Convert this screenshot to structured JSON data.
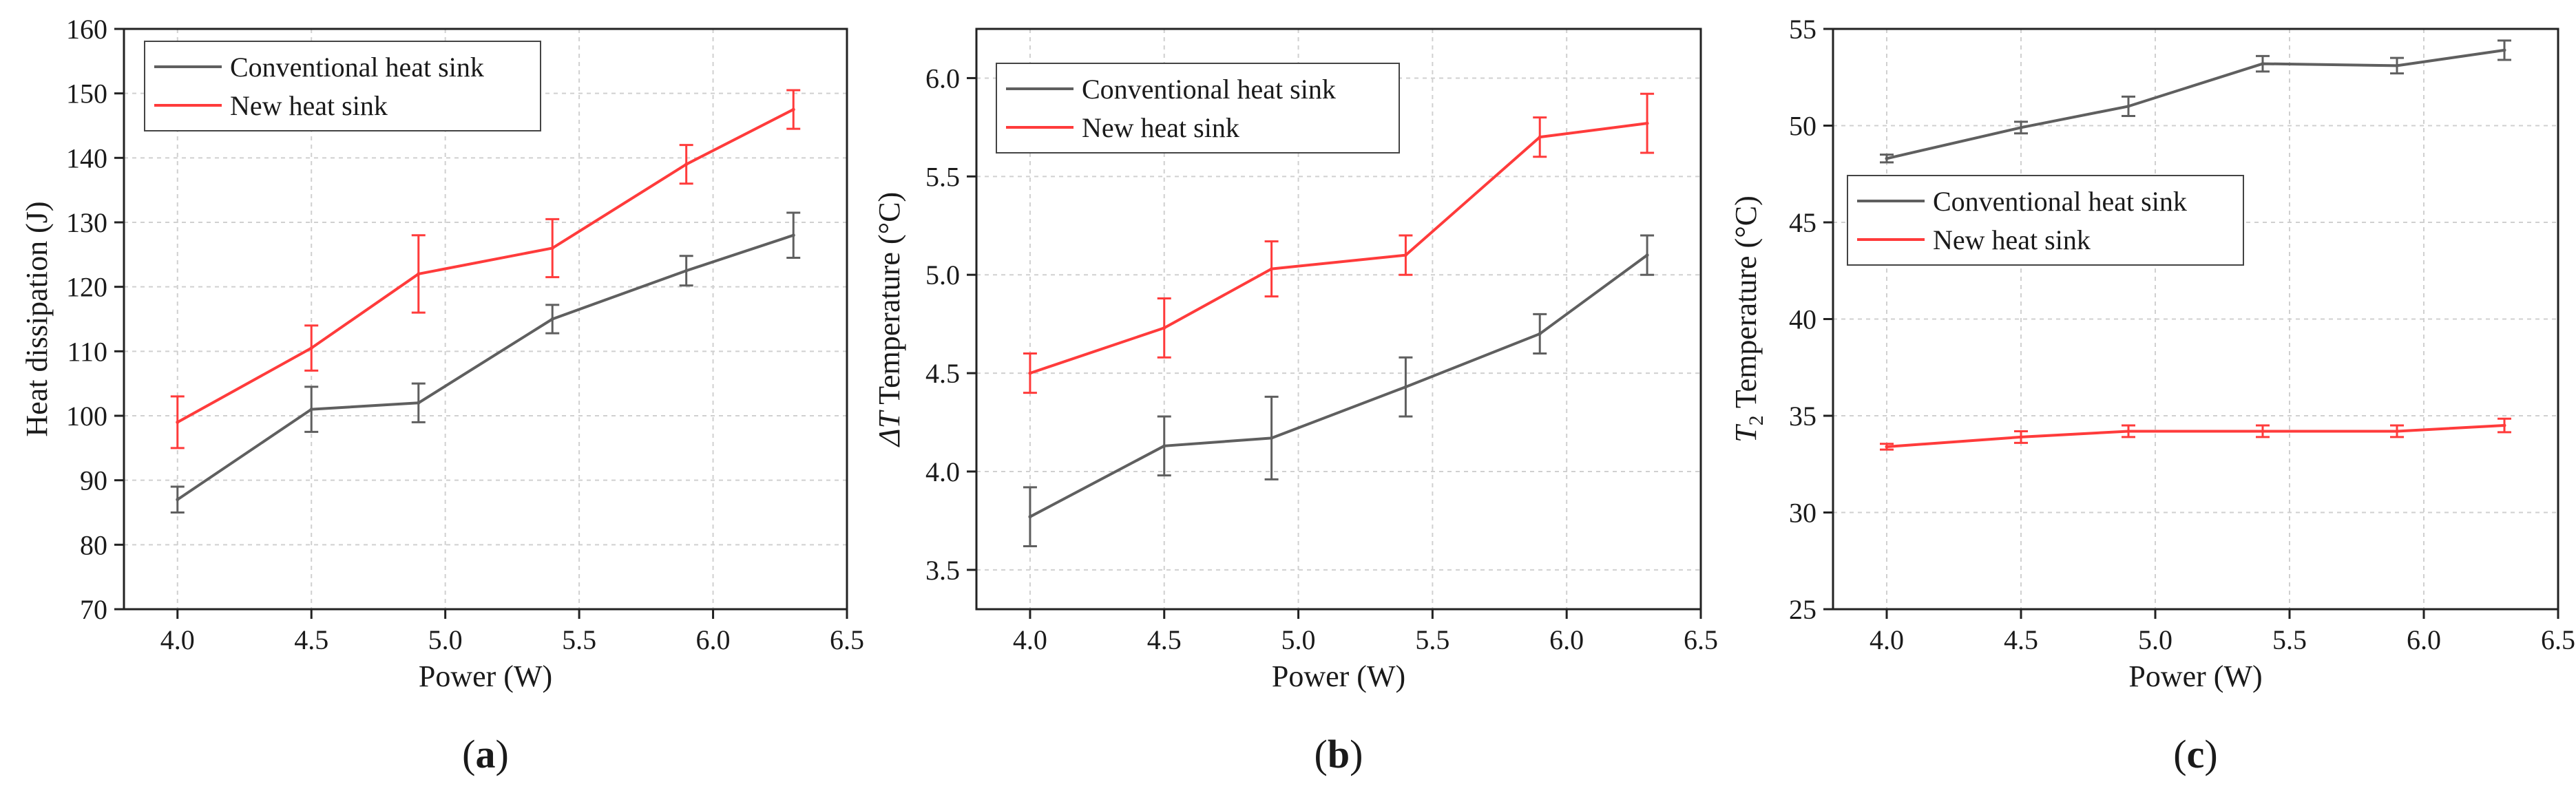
{
  "figure": {
    "colors": {
      "conventional": "#5f5f5f",
      "new": "#ff3b3b",
      "axis": "#222222",
      "grid": "#d0d0d0"
    }
  },
  "chart_data": [
    {
      "id": "a",
      "type": "line",
      "panel_label": "a",
      "xlabel": "Power (W)",
      "ylabel": "Heat dissipation (J)",
      "xlim": [
        3.8,
        6.5
      ],
      "ylim": [
        70,
        160
      ],
      "xticks": [
        "4.0",
        "4.5",
        "5.0",
        "5.5",
        "6.0",
        "6.5"
      ],
      "yticks": [
        "70",
        "80",
        "90",
        "100",
        "110",
        "120",
        "130",
        "140",
        "150",
        "160"
      ],
      "legend": "top-left",
      "x": [
        4.0,
        4.5,
        4.9,
        5.4,
        5.9,
        6.3
      ],
      "series": [
        {
          "name": "Conventional heat sink",
          "color": "#5f5f5f",
          "values": [
            87.0,
            101.0,
            102.0,
            115.0,
            122.5,
            128.0
          ],
          "errors": [
            2.0,
            3.5,
            3.0,
            2.2,
            2.3,
            3.5
          ]
        },
        {
          "name": "New heat sink",
          "color": "#ff3b3b",
          "values": [
            99.0,
            110.5,
            122.0,
            126.0,
            139.0,
            147.5
          ],
          "errors": [
            4.0,
            3.5,
            6.0,
            4.5,
            3.0,
            3.0
          ]
        }
      ]
    },
    {
      "id": "b",
      "type": "line",
      "panel_label": "b",
      "xlabel": "Power (W)",
      "ylabel_italic": "ΔT",
      "ylabel": " Temperature (°C)",
      "xlim": [
        3.8,
        6.5
      ],
      "ylim": [
        3.3,
        6.25
      ],
      "xticks": [
        "4.0",
        "4.5",
        "5.0",
        "5.5",
        "6.0",
        "6.5"
      ],
      "yticks": [
        "3.5",
        "4.0",
        "4.5",
        "5.0",
        "5.5",
        "6.0"
      ],
      "legend": "top-left",
      "x": [
        4.0,
        4.5,
        4.9,
        5.4,
        5.9,
        6.3
      ],
      "series": [
        {
          "name": "Conventional heat sink",
          "color": "#5f5f5f",
          "values": [
            3.77,
            4.13,
            4.17,
            4.43,
            4.7,
            5.1
          ],
          "errors": [
            0.15,
            0.15,
            0.21,
            0.15,
            0.1,
            0.1
          ]
        },
        {
          "name": "New heat sink",
          "color": "#ff3b3b",
          "values": [
            4.5,
            4.73,
            5.03,
            5.1,
            5.7,
            5.77
          ],
          "errors": [
            0.1,
            0.15,
            0.14,
            0.1,
            0.1,
            0.15
          ]
        }
      ]
    },
    {
      "id": "c",
      "type": "line",
      "panel_label": "c",
      "xlabel": "Power (W)",
      "ylabel_italic": "T",
      "ylabel_sub": "2",
      "ylabel": "  Temperature (°C)",
      "xlim": [
        3.8,
        6.5
      ],
      "ylim": [
        25,
        55
      ],
      "xticks": [
        "4.0",
        "4.5",
        "5.0",
        "5.5",
        "6.0",
        "6.5"
      ],
      "yticks": [
        "25",
        "30",
        "35",
        "40",
        "45",
        "50",
        "55"
      ],
      "legend": "middle-left",
      "x": [
        4.0,
        4.5,
        4.9,
        5.4,
        5.9,
        6.3
      ],
      "series": [
        {
          "name": "Conventional heat sink",
          "color": "#5f5f5f",
          "values": [
            48.3,
            49.9,
            51.0,
            53.2,
            53.1,
            53.9
          ],
          "errors": [
            0.2,
            0.3,
            0.5,
            0.4,
            0.4,
            0.5
          ]
        },
        {
          "name": "New heat sink",
          "color": "#ff3b3b",
          "values": [
            33.4,
            33.9,
            34.2,
            34.2,
            34.2,
            34.5
          ],
          "errors": [
            0.15,
            0.3,
            0.3,
            0.3,
            0.3,
            0.35
          ]
        }
      ]
    }
  ]
}
